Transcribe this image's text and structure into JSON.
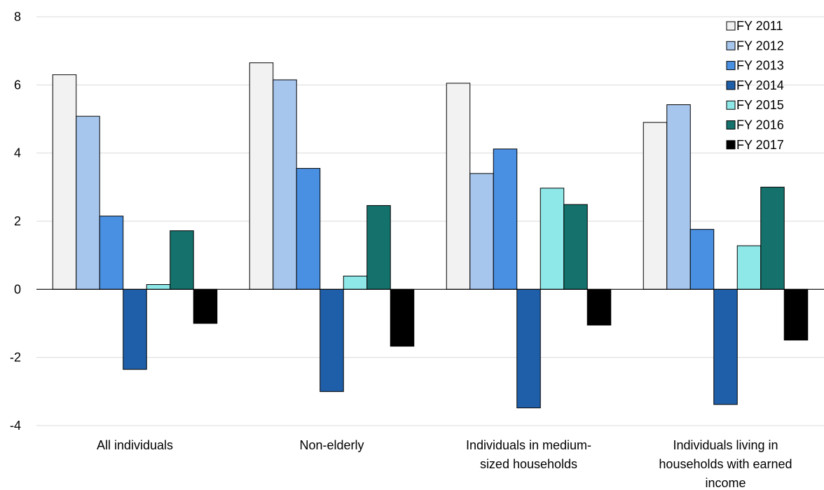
{
  "chart_data": {
    "type": "bar",
    "title": "",
    "xlabel": "",
    "ylabel": "",
    "ylim": [
      -4,
      8
    ],
    "yticks": [
      8,
      6,
      4,
      2,
      0,
      -2,
      -4
    ],
    "yticks_labels": [
      "8",
      "6",
      "4",
      "2",
      "0",
      "-2",
      "-4"
    ],
    "grid": true,
    "legend_position": "top-right",
    "categories": [
      [
        "All individuals"
      ],
      [
        "Non-elderly"
      ],
      [
        "Individuals in medium-",
        "sized households"
      ],
      [
        "Individuals living in",
        "households with earned",
        "income"
      ]
    ],
    "series": [
      {
        "name": "FY 2011",
        "color": "#f2f2f2",
        "values": [
          6.3,
          6.65,
          6.05,
          4.9
        ]
      },
      {
        "name": "FY 2012",
        "color": "#a7c6ed",
        "values": [
          5.08,
          6.15,
          3.4,
          5.42
        ]
      },
      {
        "name": "FY 2013",
        "color": "#4a90e2",
        "values": [
          2.15,
          3.55,
          4.12,
          1.76
        ]
      },
      {
        "name": "FY 2014",
        "color": "#1f5ea8",
        "values": [
          -2.35,
          -3.0,
          -3.48,
          -3.38
        ]
      },
      {
        "name": "FY 2015",
        "color": "#8ee8e8",
        "values": [
          0.14,
          0.39,
          2.97,
          1.28
        ]
      },
      {
        "name": "FY 2016",
        "color": "#14716b",
        "values": [
          1.72,
          2.46,
          2.49,
          3.0
        ]
      },
      {
        "name": "FY 2017",
        "color": "#000000",
        "values": [
          -1.0,
          -1.67,
          -1.05,
          -1.49
        ]
      }
    ]
  }
}
